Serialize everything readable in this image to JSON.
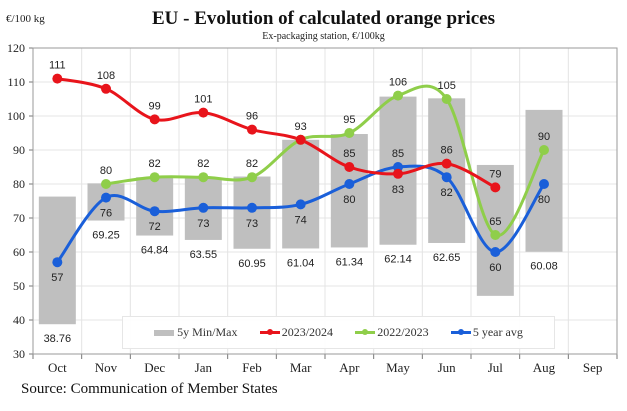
{
  "chart_data": {
    "type": "line",
    "title": "EU  -  Evolution of calculated orange prices",
    "subtitle": "Ex-packaging station, €/100kg",
    "ylabel": "€/100 kg",
    "xlabel": "",
    "ylim": [
      30,
      120
    ],
    "yticks": [
      30,
      40,
      50,
      60,
      70,
      80,
      90,
      100,
      110,
      120
    ],
    "grid": true,
    "legend_position": "bottom-center",
    "categories": [
      "Oct",
      "Nov",
      "Dec",
      "Jan",
      "Feb",
      "Mar",
      "Apr",
      "May",
      "Jun",
      "Jul",
      "Aug",
      "Sep"
    ],
    "range_bars": {
      "name": "5y Min/Max",
      "color": "#bfbfbf",
      "min": [
        38.76,
        69.25,
        64.84,
        63.55,
        60.95,
        61.04,
        61.34,
        62.14,
        62.65,
        47.1,
        60.08,
        null
      ],
      "max": [
        76.3,
        80.2,
        82,
        81.8,
        82.2,
        93,
        94.7,
        105.7,
        105.2,
        85.6,
        101.8,
        null
      ],
      "min_labels": [
        "38.76",
        "69.25",
        "64.84",
        "63.55",
        "60.95",
        "61.04",
        "61.34",
        "62.14",
        "62.65",
        null,
        "60.08",
        null
      ]
    },
    "series": [
      {
        "name": "2023/2024",
        "color": "#e8141b",
        "values": [
          111,
          108,
          99,
          101,
          96,
          93,
          85,
          83,
          86,
          79,
          null,
          null
        ],
        "label_pos": [
          "above",
          "above",
          "above",
          "above",
          "above",
          "above",
          "above",
          "below",
          "above",
          "above",
          null,
          null
        ]
      },
      {
        "name": "2022/2023",
        "color": "#8fce4a",
        "values": [
          null,
          80,
          82,
          82,
          82,
          93,
          95,
          106,
          105,
          65,
          90,
          null
        ],
        "label_pos": [
          null,
          "above",
          "above",
          "above",
          "above",
          "none",
          "above",
          "above",
          "above",
          "above",
          "above",
          null
        ]
      },
      {
        "name": "5 year avg",
        "color": "#1a5fd9",
        "values": [
          57,
          76,
          72,
          73,
          73,
          74,
          80,
          85,
          82,
          60,
          80,
          null
        ],
        "label_pos": [
          "below",
          "below",
          "below",
          "below",
          "below",
          "below",
          "below",
          "above",
          "below",
          "below",
          "below",
          null
        ]
      }
    ]
  },
  "labels": {
    "unit": "€/100 kg",
    "source": "Source:  Communication  of  Member  States"
  }
}
